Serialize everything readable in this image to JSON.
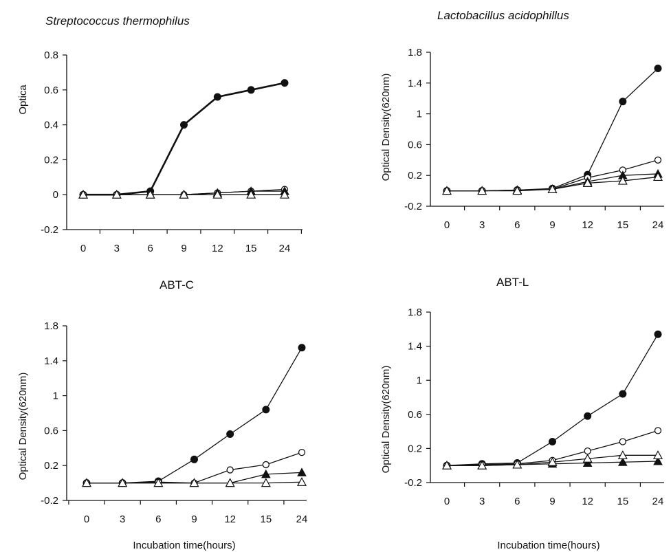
{
  "chart_data": [
    {
      "type": "line",
      "title": "Streptococcus thermophilus",
      "title_italic": true,
      "ylabel": "Optica",
      "xlabel": "",
      "categories": [
        "0",
        "3",
        "6",
        "9",
        "12",
        "15",
        "24"
      ],
      "ylim": [
        -0.2,
        0.8
      ],
      "yticks": [
        -0.2,
        0,
        0.2,
        0.4,
        0.6,
        0.8
      ],
      "ytick_labels": [
        "-0.2",
        "0",
        "0.2",
        "0.4",
        "0.6",
        "0.8"
      ],
      "grid": false,
      "series": [
        {
          "marker": "filled-circle",
          "values": [
            0.0,
            0.0,
            0.02,
            0.4,
            0.56,
            0.6,
            0.64
          ]
        },
        {
          "marker": "open-circle",
          "values": [
            0.0,
            0.0,
            0.0,
            0.0,
            0.01,
            0.02,
            0.03
          ]
        },
        {
          "marker": "filled-triangle",
          "values": [
            0.0,
            0.0,
            0.0,
            0.0,
            0.01,
            0.02,
            0.02
          ]
        },
        {
          "marker": "open-triangle",
          "values": [
            0.0,
            0.0,
            0.0,
            0.0,
            0.0,
            0.0,
            0.0
          ]
        }
      ]
    },
    {
      "type": "line",
      "title": "Lactobacillus acidophillus",
      "title_italic": true,
      "ylabel": "Optical Density(620nm)",
      "xlabel": "",
      "categories": [
        "0",
        "3",
        "6",
        "9",
        "12",
        "15",
        "24"
      ],
      "ylim": [
        -0.2,
        1.8
      ],
      "yticks": [
        -0.2,
        0.2,
        0.6,
        1,
        1.4,
        1.8
      ],
      "ytick_labels": [
        "-0.2",
        "0.2",
        "0.6",
        "1",
        "1.4",
        "1.8"
      ],
      "grid": false,
      "series": [
        {
          "marker": "filled-circle",
          "values": [
            0.0,
            0.0,
            0.01,
            0.03,
            0.21,
            1.16,
            1.59
          ]
        },
        {
          "marker": "open-circle",
          "values": [
            0.0,
            0.0,
            0.01,
            0.02,
            0.17,
            0.27,
            0.4
          ]
        },
        {
          "marker": "filled-triangle",
          "values": [
            0.0,
            0.0,
            0.01,
            0.02,
            0.12,
            0.2,
            0.22
          ]
        },
        {
          "marker": "open-triangle",
          "values": [
            0.0,
            0.0,
            0.0,
            0.02,
            0.1,
            0.13,
            0.18
          ]
        }
      ]
    },
    {
      "type": "line",
      "title": "ABT-C",
      "title_italic": false,
      "ylabel": "Optical Density(620nm)",
      "xlabel": "Incubation time(hours)",
      "categories": [
        "0",
        "3",
        "6",
        "9",
        "12",
        "15",
        "24"
      ],
      "ylim": [
        -0.2,
        1.8
      ],
      "yticks": [
        -0.2,
        0.2,
        0.6,
        1,
        1.4,
        1.8
      ],
      "ytick_labels": [
        "-0.2",
        "0.2",
        "0.6",
        "1",
        "1.4",
        "1.8"
      ],
      "grid": false,
      "series": [
        {
          "marker": "filled-circle",
          "values": [
            0.0,
            0.0,
            0.02,
            0.27,
            0.56,
            0.84,
            1.55
          ]
        },
        {
          "marker": "open-circle",
          "values": [
            0.0,
            0.0,
            0.01,
            0.0,
            0.15,
            0.21,
            0.35
          ]
        },
        {
          "marker": "filled-triangle",
          "values": [
            0.0,
            0.0,
            0.0,
            0.0,
            0.0,
            0.1,
            0.12
          ]
        },
        {
          "marker": "open-triangle",
          "values": [
            0.0,
            0.0,
            0.0,
            0.0,
            0.0,
            0.0,
            0.01
          ]
        }
      ]
    },
    {
      "type": "line",
      "title": "ABT-L",
      "title_italic": false,
      "ylabel": "Optical Density(620nm)",
      "xlabel": "Incubation time(hours)",
      "categories": [
        "0",
        "3",
        "6",
        "9",
        "12",
        "15",
        "24"
      ],
      "ylim": [
        -0.2,
        1.8
      ],
      "yticks": [
        -0.2,
        0.2,
        0.6,
        1,
        1.4,
        1.8
      ],
      "ytick_labels": [
        "-0.2",
        "0.2",
        "0.6",
        "1",
        "1.4",
        "1.8"
      ],
      "grid": false,
      "series": [
        {
          "marker": "filled-circle",
          "values": [
            0.0,
            0.02,
            0.03,
            0.28,
            0.58,
            0.84,
            1.54
          ]
        },
        {
          "marker": "open-circle",
          "values": [
            0.0,
            0.01,
            0.02,
            0.06,
            0.17,
            0.28,
            0.41
          ]
        },
        {
          "marker": "filled-triangle",
          "values": [
            0.0,
            0.0,
            0.01,
            0.02,
            0.03,
            0.04,
            0.05
          ]
        },
        {
          "marker": "open-triangle",
          "values": [
            0.0,
            0.0,
            0.01,
            0.04,
            0.08,
            0.12,
            0.12
          ]
        }
      ]
    }
  ]
}
